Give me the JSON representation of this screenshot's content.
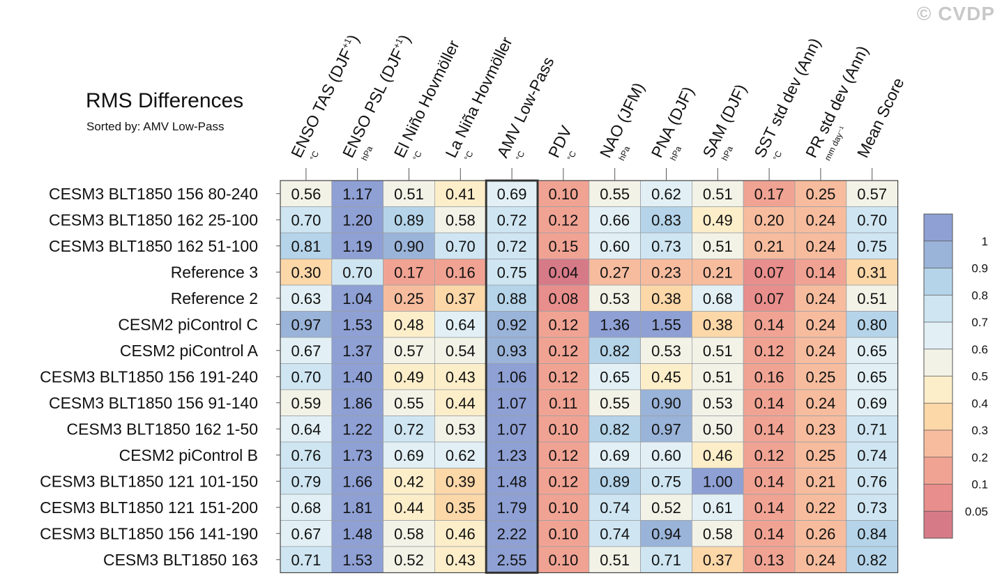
{
  "watermark": "© CVDP",
  "chart_data": {
    "type": "table",
    "title": "RMS Differences",
    "subtitle": "Sorted by: AMV Low-Pass",
    "sorted_by": "AMV Low-Pass",
    "columns": [
      {
        "name": "ENSO TAS (DJF",
        "sup": "+1",
        "close": ")",
        "unit": "°C"
      },
      {
        "name": "ENSO PSL (DJF",
        "sup": "+1",
        "close": ")",
        "unit": "hPa"
      },
      {
        "name": "El Niño Hovmöller",
        "sup": "",
        "close": "",
        "unit": "°C"
      },
      {
        "name": "La Niña Hovmöller",
        "sup": "",
        "close": "",
        "unit": "°C"
      },
      {
        "name": "AMV Low-Pass",
        "sup": "",
        "close": "",
        "unit": "°C"
      },
      {
        "name": "PDV",
        "sup": "",
        "close": "",
        "unit": "°C"
      },
      {
        "name": "NAO (JFM)",
        "sup": "",
        "close": "",
        "unit": "hPa"
      },
      {
        "name": "PNA (DJF)",
        "sup": "",
        "close": "",
        "unit": "hPa"
      },
      {
        "name": "SAM (DJF)",
        "sup": "",
        "close": "",
        "unit": "hPa"
      },
      {
        "name": "SST std dev (Ann)",
        "sup": "",
        "close": "",
        "unit": "°C"
      },
      {
        "name": "PR std dev (Ann)",
        "sup": "",
        "close": "",
        "unit": "mm day⁻¹"
      },
      {
        "name": "Mean Score",
        "sup": "",
        "close": "",
        "unit": ""
      }
    ],
    "rows": [
      {
        "name": "CESM3 BLT1850 156 80-240",
        "values": [
          0.56,
          1.17,
          0.51,
          0.41,
          0.69,
          0.1,
          0.55,
          0.62,
          0.51,
          0.17,
          0.25,
          0.57
        ]
      },
      {
        "name": "CESM3 BLT1850 162 25-100",
        "values": [
          0.7,
          1.2,
          0.89,
          0.58,
          0.72,
          0.12,
          0.66,
          0.83,
          0.49,
          0.2,
          0.24,
          0.7
        ]
      },
      {
        "name": "CESM3 BLT1850 162 51-100",
        "values": [
          0.81,
          1.19,
          0.9,
          0.7,
          0.72,
          0.15,
          0.6,
          0.73,
          0.51,
          0.21,
          0.24,
          0.75
        ]
      },
      {
        "name": "Reference 3",
        "values": [
          0.3,
          0.7,
          0.17,
          0.16,
          0.75,
          0.04,
          0.27,
          0.23,
          0.21,
          0.07,
          0.14,
          0.31
        ]
      },
      {
        "name": "Reference 2",
        "values": [
          0.63,
          1.04,
          0.25,
          0.37,
          0.88,
          0.08,
          0.53,
          0.38,
          0.68,
          0.07,
          0.24,
          0.51
        ]
      },
      {
        "name": "CESM2 piControl C",
        "values": [
          0.97,
          1.53,
          0.48,
          0.64,
          0.92,
          0.12,
          1.36,
          1.55,
          0.38,
          0.14,
          0.24,
          0.8
        ]
      },
      {
        "name": "CESM2 piControl A",
        "values": [
          0.67,
          1.37,
          0.57,
          0.54,
          0.93,
          0.12,
          0.82,
          0.53,
          0.51,
          0.12,
          0.24,
          0.65
        ]
      },
      {
        "name": "CESM3 BLT1850 156 191-240",
        "values": [
          0.7,
          1.4,
          0.49,
          0.43,
          1.06,
          0.12,
          0.65,
          0.45,
          0.51,
          0.16,
          0.25,
          0.65
        ]
      },
      {
        "name": "CESM3 BLT1850 156 91-140",
        "values": [
          0.59,
          1.86,
          0.55,
          0.44,
          1.07,
          0.11,
          0.55,
          0.9,
          0.53,
          0.14,
          0.24,
          0.69
        ]
      },
      {
        "name": "CESM3 BLT1850 162 1-50",
        "values": [
          0.64,
          1.22,
          0.72,
          0.53,
          1.07,
          0.1,
          0.82,
          0.97,
          0.5,
          0.14,
          0.23,
          0.71
        ]
      },
      {
        "name": "CESM2 piControl B",
        "values": [
          0.76,
          1.73,
          0.69,
          0.62,
          1.23,
          0.12,
          0.69,
          0.6,
          0.46,
          0.12,
          0.25,
          0.74
        ]
      },
      {
        "name": "CESM3 BLT1850 121 101-150",
        "values": [
          0.79,
          1.66,
          0.42,
          0.39,
          1.48,
          0.12,
          0.89,
          0.75,
          1.0,
          0.14,
          0.21,
          0.76
        ]
      },
      {
        "name": "CESM3 BLT1850 121 151-200",
        "values": [
          0.68,
          1.81,
          0.44,
          0.35,
          1.79,
          0.1,
          0.74,
          0.52,
          0.61,
          0.14,
          0.22,
          0.73
        ]
      },
      {
        "name": "CESM3 BLT1850 156 141-190",
        "values": [
          0.67,
          1.48,
          0.58,
          0.46,
          2.22,
          0.1,
          0.74,
          0.94,
          0.58,
          0.14,
          0.26,
          0.84
        ]
      },
      {
        "name": "CESM3 BLT1850 163",
        "values": [
          0.71,
          1.53,
          0.52,
          0.43,
          2.55,
          0.1,
          0.51,
          0.71,
          0.37,
          0.13,
          0.24,
          0.82
        ]
      }
    ],
    "colorbar": {
      "levels": [
        0.05,
        0.1,
        0.2,
        0.3,
        0.4,
        0.5,
        0.6,
        0.7,
        0.8,
        0.9,
        1
      ],
      "labels": [
        "0.05",
        "0.1",
        "0.2",
        "0.3",
        "0.4",
        "0.5",
        "0.6",
        "0.7",
        "0.8",
        "0.9",
        "1"
      ],
      "colors": [
        "#d77a88",
        "#e88e8c",
        "#f1a393",
        "#f7bc9e",
        "#fcd7a8",
        "#fdeeca",
        "#f2f2e7",
        "#e2f0f5",
        "#cfe6f2",
        "#b5d4e9",
        "#9ab3d9",
        "#8ea0d4"
      ]
    }
  }
}
